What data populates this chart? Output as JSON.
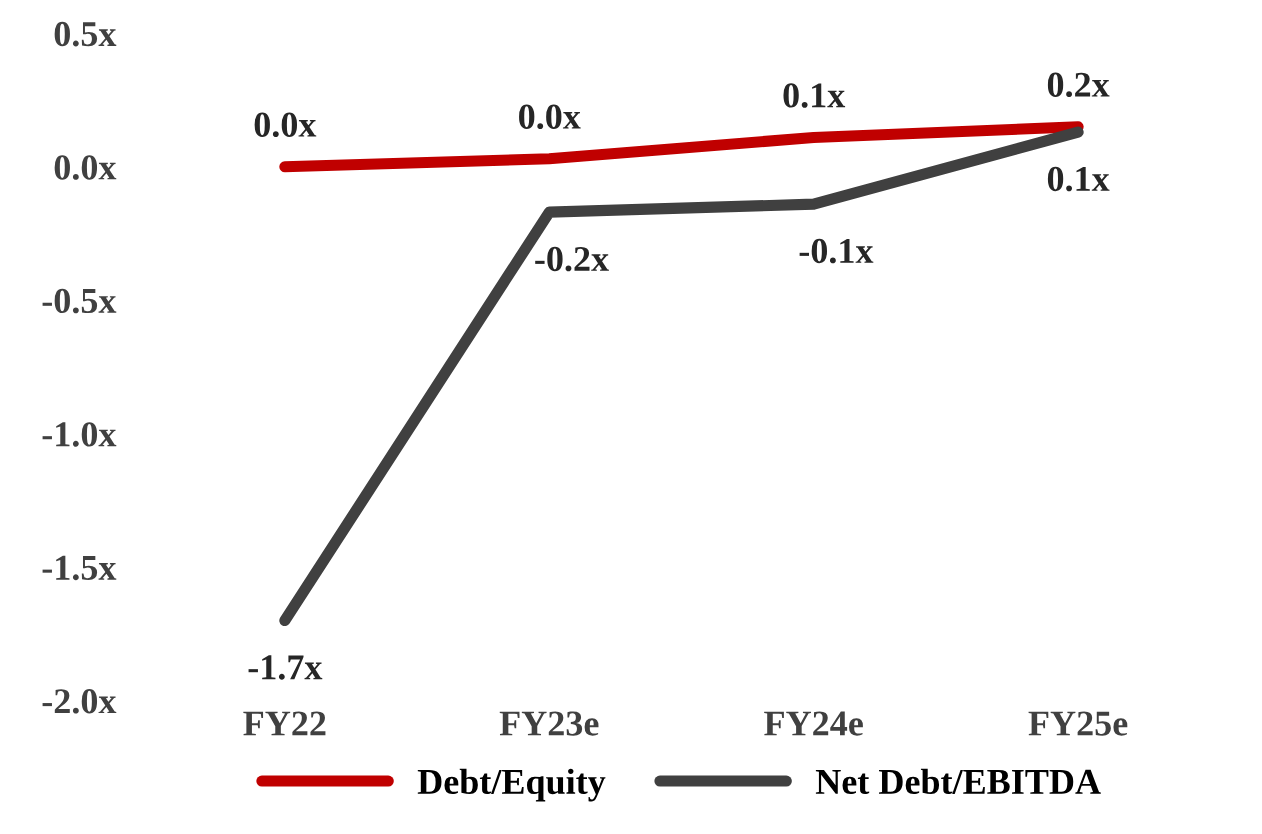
{
  "chart_data": {
    "type": "line",
    "categories": [
      "FY22",
      "FY23e",
      "FY24e",
      "FY25e"
    ],
    "series": [
      {
        "name": "Debt/Equity",
        "color": "#c00000",
        "values": [
          0.0,
          0.03,
          0.11,
          0.15
        ],
        "value_labels": [
          "0.0x",
          "0.0x",
          "0.1x",
          "0.2x"
        ]
      },
      {
        "name": "Net Debt/EBITDA",
        "color": "#404040",
        "values": [
          -1.7,
          -0.17,
          -0.14,
          0.13
        ],
        "value_labels": [
          "-1.7x",
          "-0.2x",
          "-0.1x",
          "0.1x"
        ]
      }
    ],
    "ylim": [
      -2.0,
      0.5
    ],
    "yticks": [
      {
        "value": -2.0,
        "label": "-2.0x"
      },
      {
        "value": -1.5,
        "label": "-1.5x"
      },
      {
        "value": -1.0,
        "label": "-1.0x"
      },
      {
        "value": -0.5,
        "label": "-0.5x"
      },
      {
        "value": 0.0,
        "label": "0.0x"
      },
      {
        "value": 0.5,
        "label": "0.5x"
      }
    ],
    "grid": false,
    "legend": "bottom",
    "marker": "none",
    "line_style": "solid"
  }
}
